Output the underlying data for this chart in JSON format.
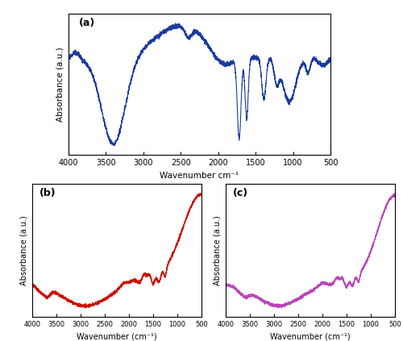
{
  "title_a": "(a)",
  "title_b": "(b)",
  "title_c": "(c)",
  "xlabel_a": "Wavenumber cm⁻¹",
  "xlabel_bc": "Wavenumber (cm⁻¹)",
  "ylabel": "Absorbance (a.u.)",
  "color_a": "#1a3a9e",
  "color_b": "#cc1100",
  "color_c": "#bb44bb",
  "background": "#ffffff",
  "linewidth": 0.8
}
